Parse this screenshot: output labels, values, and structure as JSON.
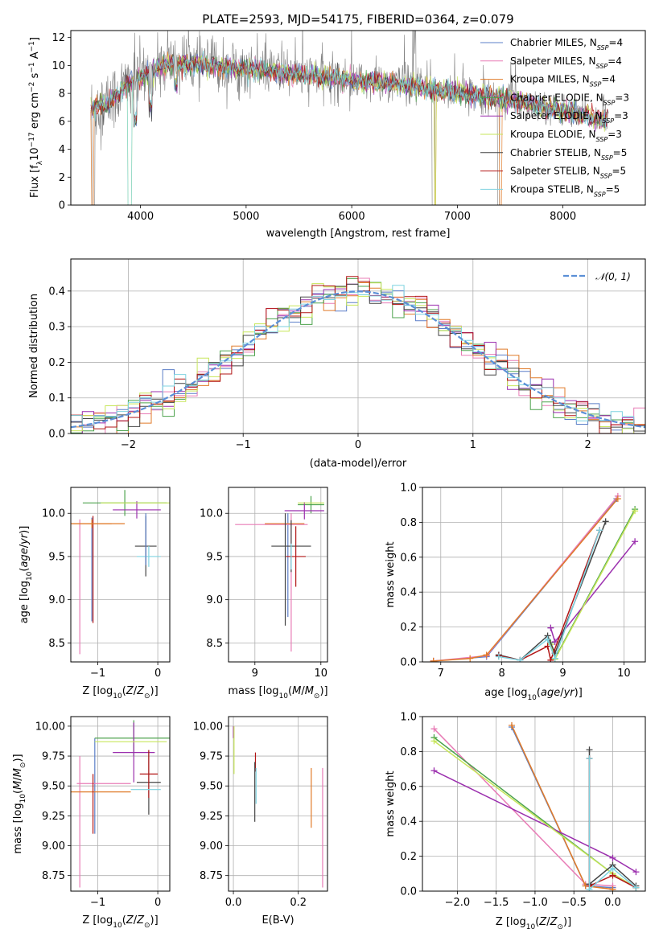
{
  "figure_title": "PLATE=2593, MJD=54175, FIBERID=0364, z=0.079",
  "colors": {
    "chabrier_miles": "#5b7fc8",
    "salpeter_miles": "#e87cb6",
    "kroupa_miles": "#e07b2a",
    "chabrier_elodie": "#4da34d",
    "salpeter_elodie": "#9b2fae",
    "kroupa_elodie": "#c7e65a",
    "chabrier_stelib": "#444444",
    "salpeter_stelib": "#b21616",
    "kroupa_stelib": "#7fd3e0",
    "data": "#808080",
    "normal": "#5b8fd6",
    "grid": "#b0b0b0"
  },
  "chart_data": [
    {
      "id": "spectrum",
      "type": "line",
      "title": "PLATE=2593, MJD=54175, FIBERID=0364, z=0.079",
      "xlabel": "wavelength [Angstrom, rest frame]",
      "ylabel": "Flux [fλ10⁻¹⁷ erg cm⁻² s⁻¹ A⁻¹]",
      "xlim": [
        3340,
        8780
      ],
      "ylim": [
        0,
        12.5
      ],
      "xticks": [
        "4000",
        "5000",
        "6000",
        "7000",
        "8000"
      ],
      "yticks": [
        "0",
        "2",
        "4",
        "6",
        "8",
        "10",
        "12"
      ],
      "legend_position": "upper-right",
      "series": [
        {
          "name": "Chabrier MILES, N_SSP=4",
          "label_main": "Chabrier MILES, N",
          "label_sub": "SSP",
          "label_tail": "=4",
          "color_key": "chabrier_miles"
        },
        {
          "name": "Salpeter MILES, N_SSP=4",
          "label_main": "Salpeter MILES, N",
          "label_sub": "SSP",
          "label_tail": "=4",
          "color_key": "salpeter_miles"
        },
        {
          "name": "Kroupa MILES, N_SSP=4",
          "label_main": "Kroupa MILES, N",
          "label_sub": "SSP",
          "label_tail": "=4",
          "color_key": "kroupa_miles"
        },
        {
          "name": "Chabrier ELODIE, N_SSP=3",
          "label_main": "Chabrier ELODIE, N",
          "label_sub": "SSP",
          "label_tail": "=3",
          "color_key": "chabrier_elodie"
        },
        {
          "name": "Salpeter ELODIE, N_SSP=3",
          "label_main": "Salpeter ELODIE, N",
          "label_sub": "SSP",
          "label_tail": "=3",
          "color_key": "salpeter_elodie"
        },
        {
          "name": "Kroupa ELODIE, N_SSP=3",
          "label_main": "Kroupa ELODIE, N",
          "label_sub": "SSP",
          "label_tail": "=3",
          "color_key": "kroupa_elodie"
        },
        {
          "name": "Chabrier STELIB, N_SSP=5",
          "label_main": "Chabrier STELIB, N",
          "label_sub": "SSP",
          "label_tail": "=5",
          "color_key": "chabrier_stelib"
        },
        {
          "name": "Salpeter STELIB, N_SSP=5",
          "label_main": "Salpeter STELIB, N",
          "label_sub": "SSP",
          "label_tail": "=5",
          "color_key": "salpeter_stelib"
        },
        {
          "name": "Kroupa STELIB, N_SSP=5",
          "label_main": "Kroupa STELIB, N",
          "label_sub": "SSP",
          "label_tail": "=5",
          "color_key": "kroupa_stelib"
        }
      ],
      "data_trace": {
        "wavelength_range": [
          3530,
          8400
        ],
        "approx_level": [
          7,
          10.5,
          10,
          9,
          8.5,
          8,
          7.5,
          6.5
        ]
      }
    },
    {
      "id": "residual_histogram",
      "type": "bar",
      "xlabel": "(data-model)/error",
      "ylabel": "Normed distribution",
      "xlim": [
        -2.5,
        2.5
      ],
      "ylim": [
        0,
        0.49
      ],
      "xticks": [
        "−2",
        "−1",
        "0",
        "1",
        "2"
      ],
      "yticks": [
        "0.0",
        "0.1",
        "0.2",
        "0.3",
        "0.4"
      ],
      "legend": "𝒩(0, 1)",
      "legend_position": "upper-right",
      "bin_width": 0.1,
      "grid": true
    },
    {
      "id": "age_vs_Z",
      "type": "scatter",
      "xlabel": "Z [log₁₀(Z/Z⊙)]",
      "ylabel": "age  [log₁₀(age/yr)]",
      "xlim": [
        -1.45,
        0.2
      ],
      "ylim": [
        8.28,
        10.3
      ],
      "xticks": [
        "−1",
        "0"
      ],
      "yticks": [
        "8.5",
        "9.0",
        "9.5",
        "10.0"
      ],
      "grid": true
    },
    {
      "id": "age_vs_mass",
      "type": "scatter",
      "xlabel": "mass [log₁₀(M/M⊙)]",
      "ylabel": "",
      "xlim": [
        8.6,
        10.1
      ],
      "ylim": [
        8.28,
        10.3
      ],
      "xticks": [
        "9",
        "10"
      ],
      "yticks": [
        "8.5",
        "9.0",
        "9.5",
        "10.0"
      ],
      "grid": true
    },
    {
      "id": "massweight_vs_age",
      "type": "line",
      "xlabel": "age  [log₁₀(age/yr)]",
      "ylabel": "mass weight",
      "xlim": [
        6.7,
        10.35
      ],
      "ylim": [
        0,
        1.0
      ],
      "xticks": [
        "7",
        "8",
        "9",
        "10"
      ],
      "yticks": [
        "0.0",
        "0.2",
        "0.4",
        "0.6",
        "0.8",
        "1.0"
      ],
      "grid": true,
      "series": [
        {
          "name": "Chabrier MILES",
          "color_key": "chabrier_miles",
          "x": [
            6.88,
            7.75,
            9.88
          ],
          "y": [
            0.005,
            0.03,
            0.935
          ]
        },
        {
          "name": "Salpeter MILES",
          "color_key": "salpeter_miles",
          "x": [
            6.88,
            7.75,
            9.9
          ],
          "y": [
            0.005,
            0.035,
            0.95
          ]
        },
        {
          "name": "Kroupa MILES",
          "color_key": "kroupa_miles",
          "x": [
            6.88,
            7.48,
            7.75,
            9.9
          ],
          "y": [
            0.005,
            0.02,
            0.04,
            0.935
          ]
        },
        {
          "name": "Chabrier ELODIE",
          "color_key": "chabrier_elodie",
          "x": [
            8.8,
            8.87,
            10.18
          ],
          "y": [
            0.11,
            0.02,
            0.875
          ]
        },
        {
          "name": "Salpeter ELODIE",
          "color_key": "salpeter_elodie",
          "x": [
            8.8,
            8.87,
            10.18
          ],
          "y": [
            0.195,
            0.115,
            0.69
          ]
        },
        {
          "name": "Kroupa ELODIE",
          "color_key": "kroupa_elodie",
          "x": [
            8.8,
            8.87,
            10.18
          ],
          "y": [
            0.1,
            0.015,
            0.865
          ]
        },
        {
          "name": "Chabrier STELIB",
          "color_key": "chabrier_stelib",
          "x": [
            7.95,
            8.3,
            8.75,
            8.87,
            9.7
          ],
          "y": [
            0.04,
            0.01,
            0.15,
            0.05,
            0.805
          ]
        },
        {
          "name": "Salpeter STELIB",
          "color_key": "salpeter_stelib",
          "x": [
            7.95,
            8.3,
            8.75,
            8.8,
            9.6
          ],
          "y": [
            0.035,
            0.01,
            0.09,
            0.01,
            0.755
          ]
        },
        {
          "name": "Kroupa STELIB",
          "color_key": "kroupa_stelib",
          "x": [
            7.95,
            8.3,
            8.75,
            8.87,
            9.6
          ],
          "y": [
            0.03,
            0.01,
            0.13,
            0.02,
            0.755
          ]
        }
      ]
    },
    {
      "id": "mass_vs_Z",
      "type": "scatter",
      "xlabel": "Z [log₁₀(Z/Z⊙)]",
      "ylabel": "mass [log₁₀(M/M⊙)]",
      "xlim": [
        -1.45,
        0.2
      ],
      "ylim": [
        8.62,
        10.08
      ],
      "xticks": [
        "−1",
        "0"
      ],
      "yticks": [
        "8.75",
        "9.00",
        "9.25",
        "9.50",
        "9.75",
        "10.00"
      ],
      "grid": true
    },
    {
      "id": "mass_vs_ebv",
      "type": "scatter",
      "xlabel": "E(B-V)",
      "ylabel": "",
      "xlim": [
        -0.015,
        0.29
      ],
      "ylim": [
        8.62,
        10.08
      ],
      "xticks": [
        "0.0",
        "0.2"
      ],
      "yticks": [
        "8.75",
        "9.00",
        "9.25",
        "9.50",
        "9.75",
        "10.00"
      ],
      "grid": true
    },
    {
      "id": "massweight_vs_Z",
      "type": "line",
      "xlabel": "Z [log₁₀(Z/Z⊙)]",
      "ylabel": "mass weight",
      "xlim": [
        -2.45,
        0.42
      ],
      "ylim": [
        0,
        1.0
      ],
      "xticks": [
        "−2.0",
        "−1.5",
        "−1.0",
        "−0.5",
        "0.0"
      ],
      "yticks": [
        "0.0",
        "0.2",
        "0.4",
        "0.6",
        "0.8",
        "1.0"
      ],
      "grid": true,
      "series": [
        {
          "name": "Chabrier MILES",
          "color_key": "chabrier_miles",
          "x": [
            -1.3,
            -0.35,
            0.0
          ],
          "y": [
            0.94,
            0.03,
            0.02
          ]
        },
        {
          "name": "Salpeter MILES",
          "color_key": "salpeter_miles",
          "x": [
            -2.3,
            -0.35,
            0.0
          ],
          "y": [
            0.93,
            0.04,
            0.03
          ]
        },
        {
          "name": "Kroupa MILES",
          "color_key": "kroupa_miles",
          "x": [
            -1.3,
            -0.35,
            0.0
          ],
          "y": [
            0.95,
            0.03,
            0.01
          ]
        },
        {
          "name": "Chabrier ELODIE",
          "color_key": "chabrier_elodie",
          "x": [
            -2.3,
            0.0,
            0.3
          ],
          "y": [
            0.88,
            0.1,
            0.02
          ]
        },
        {
          "name": "Salpeter ELODIE",
          "color_key": "salpeter_elodie",
          "x": [
            -2.3,
            0.0,
            0.3
          ],
          "y": [
            0.69,
            0.19,
            0.11
          ]
        },
        {
          "name": "Kroupa ELODIE",
          "color_key": "kroupa_elodie",
          "x": [
            -2.3,
            0.0,
            0.3
          ],
          "y": [
            0.86,
            0.1,
            0.02
          ]
        },
        {
          "name": "Chabrier STELIB",
          "color_key": "chabrier_stelib",
          "x": [
            -0.3,
            -0.3,
            0.0,
            0.3
          ],
          "y": [
            0.81,
            0.04,
            0.15,
            0.03
          ]
        },
        {
          "name": "Salpeter STELIB",
          "color_key": "salpeter_stelib",
          "x": [
            -0.3,
            -0.3,
            0.0,
            0.3
          ],
          "y": [
            0.76,
            0.03,
            0.09,
            0.02
          ]
        },
        {
          "name": "Kroupa STELIB",
          "color_key": "kroupa_stelib",
          "x": [
            -0.3,
            -0.3,
            0.0,
            0.3
          ],
          "y": [
            0.76,
            0.01,
            0.13,
            0.02
          ]
        }
      ]
    }
  ]
}
